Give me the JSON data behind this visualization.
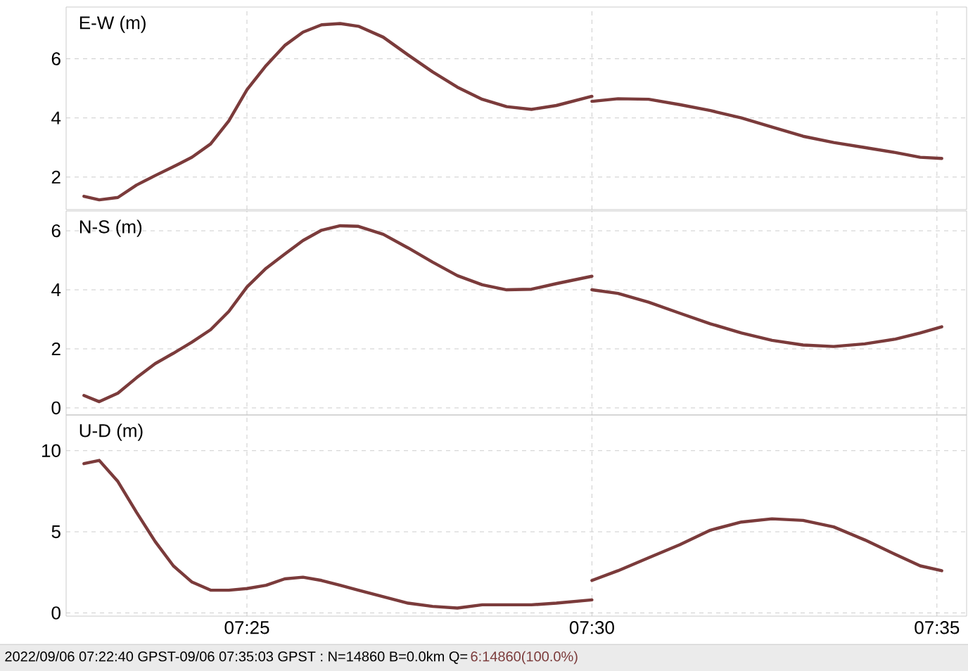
{
  "chart_data": [
    {
      "type": "line",
      "ylabel": "E-W (m)",
      "xlim": [
        7.373,
        7.5905
      ],
      "ylim": [
        0.9,
        7.75
      ],
      "yticks": [
        2,
        4,
        6
      ],
      "xticks": [
        {
          "value": 7.41667,
          "label": null
        },
        {
          "value": 7.5,
          "label": null
        },
        {
          "value": 7.58333,
          "label": null
        }
      ],
      "grid": true,
      "marker": "none",
      "line_style": "solid",
      "tick_labels": "y",
      "series": [
        {
          "color": "#7b3b3b",
          "x": [
            7.3773,
            7.381,
            7.3855,
            7.39,
            7.3945,
            7.3989,
            7.4034,
            7.4079,
            7.4123,
            7.4167,
            7.4213,
            7.4258,
            7.4302,
            7.4347,
            7.4392,
            7.4436,
            7.4496,
            7.4556,
            7.4615,
            7.4675,
            7.4735,
            7.4794,
            7.4854,
            7.4914,
            7.5
          ],
          "values": [
            1.35,
            1.23,
            1.31,
            1.73,
            2.05,
            2.35,
            2.67,
            3.12,
            3.9,
            4.96,
            5.77,
            6.45,
            6.9,
            7.15,
            7.19,
            7.1,
            6.73,
            6.13,
            5.56,
            5.04,
            4.63,
            4.38,
            4.29,
            4.42,
            4.73
          ]
        },
        {
          "color": "#7b3b3b",
          "x": [
            7.5,
            7.5063,
            7.5137,
            7.5212,
            7.5286,
            7.5361,
            7.5435,
            7.551,
            7.5584,
            7.5659,
            7.5733,
            7.5793,
            7.5845
          ],
          "values": [
            4.56,
            4.65,
            4.63,
            4.45,
            4.25,
            4.0,
            3.69,
            3.38,
            3.17,
            3.0,
            2.83,
            2.67,
            2.63
          ]
        }
      ]
    },
    {
      "type": "line",
      "ylabel": "N-S (m)",
      "xlim": [
        7.373,
        7.5905
      ],
      "ylim": [
        -0.24,
        6.67
      ],
      "yticks": [
        0,
        2,
        4,
        6
      ],
      "xticks": [
        {
          "value": 7.41667,
          "label": null
        },
        {
          "value": 7.5,
          "label": null
        },
        {
          "value": 7.58333,
          "label": null
        }
      ],
      "grid": true,
      "marker": "none",
      "line_style": "solid",
      "tick_labels": "y",
      "series": [
        {
          "color": "#7b3b3b",
          "x": [
            7.3773,
            7.381,
            7.3855,
            7.39,
            7.3945,
            7.3989,
            7.4034,
            7.4079,
            7.4123,
            7.4167,
            7.4213,
            7.4258,
            7.4302,
            7.4347,
            7.4392,
            7.4436,
            7.4496,
            7.4556,
            7.4615,
            7.4675,
            7.4735,
            7.4794,
            7.4854,
            7.4914,
            7.5
          ],
          "values": [
            0.42,
            0.21,
            0.5,
            1.02,
            1.5,
            1.85,
            2.23,
            2.65,
            3.27,
            4.1,
            4.73,
            5.21,
            5.67,
            6.02,
            6.17,
            6.15,
            5.88,
            5.42,
            4.94,
            4.48,
            4.17,
            4.0,
            4.02,
            4.21,
            4.46
          ]
        },
        {
          "color": "#7b3b3b",
          "x": [
            7.5,
            7.5063,
            7.5137,
            7.5212,
            7.5286,
            7.5361,
            7.5435,
            7.551,
            7.5584,
            7.5659,
            7.5733,
            7.5793,
            7.5845
          ],
          "values": [
            4.0,
            3.88,
            3.58,
            3.21,
            2.85,
            2.54,
            2.29,
            2.13,
            2.08,
            2.17,
            2.33,
            2.54,
            2.75
          ]
        }
      ]
    },
    {
      "type": "line",
      "ylabel": "U-D (m)",
      "xlim": [
        7.373,
        7.5905
      ],
      "ylim": [
        -0.2,
        12.2
      ],
      "yticks": [
        0,
        5,
        10
      ],
      "xticks": [
        {
          "value": 7.41667,
          "label": "07:25"
        },
        {
          "value": 7.5,
          "label": "07:30"
        },
        {
          "value": 7.58333,
          "label": "07:35"
        }
      ],
      "grid": true,
      "marker": "none",
      "line_style": "solid",
      "annotations": [
        "2022/09/06 07:22:40 GPST-09/06 07:35:03 GPST : N=14860 B=0.0km Q=",
        "6:14860(100.0%)"
      ],
      "series": [
        {
          "color": "#7b3b3b",
          "x": [
            7.3773,
            7.381,
            7.3855,
            7.39,
            7.3945,
            7.3989,
            7.4034,
            7.4079,
            7.4123,
            7.4167,
            7.4213,
            7.4258,
            7.4302,
            7.4347,
            7.4392,
            7.4436,
            7.4496,
            7.4556,
            7.4615,
            7.4675,
            7.4735,
            7.4794,
            7.4854,
            7.4914,
            7.5
          ],
          "values": [
            9.2,
            9.4,
            8.1,
            6.2,
            4.4,
            2.9,
            1.9,
            1.4,
            1.4,
            1.5,
            1.7,
            2.1,
            2.2,
            2.0,
            1.7,
            1.4,
            1.0,
            0.6,
            0.4,
            0.3,
            0.5,
            0.5,
            0.5,
            0.6,
            0.8
          ]
        },
        {
          "color": "#7b3b3b",
          "x": [
            7.5,
            7.5063,
            7.5137,
            7.5212,
            7.5286,
            7.5361,
            7.5435,
            7.551,
            7.5584,
            7.5659,
            7.5733,
            7.5793,
            7.5845
          ],
          "values": [
            2.0,
            2.6,
            3.4,
            4.2,
            5.1,
            5.6,
            5.8,
            5.7,
            5.3,
            4.5,
            3.6,
            2.9,
            2.6
          ]
        }
      ]
    }
  ]
}
